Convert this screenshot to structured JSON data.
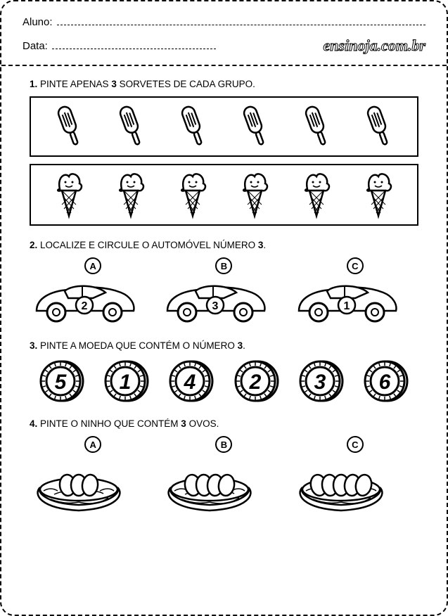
{
  "header": {
    "student_label": "Aluno:",
    "date_label": "Data:",
    "brand": "ensinoja.com.br"
  },
  "questions": {
    "q1": {
      "number": "1.",
      "text_a": "PINTE APENAS ",
      "bold": "3",
      "text_b": " SORVETES DE CADA GRUPO.",
      "popsicle_count": 6,
      "cone_count": 6
    },
    "q2": {
      "number": "2.",
      "text_a": "LOCALIZE E CIRCULE O AUTOMÓVEL NÚMERO ",
      "bold": "3",
      "text_b": ".",
      "cars": [
        {
          "letter": "A",
          "num": "2"
        },
        {
          "letter": "B",
          "num": "3"
        },
        {
          "letter": "C",
          "num": "1"
        }
      ]
    },
    "q3": {
      "number": "3.",
      "text_a": "PINTE A MOEDA QUE CONTÉM O NÚMERO ",
      "bold": "3",
      "text_b": ".",
      "coins": [
        "5",
        "1",
        "4",
        "2",
        "3",
        "6"
      ]
    },
    "q4": {
      "number": "4.",
      "text_a": "PINTE O NINHO QUE CONTÉM ",
      "bold": "3",
      "text_b": " OVOS.",
      "nests": [
        {
          "letter": "A",
          "eggs": 3
        },
        {
          "letter": "B",
          "eggs": 4
        },
        {
          "letter": "C",
          "eggs": 5
        }
      ]
    }
  },
  "style": {
    "stroke": "#000000",
    "fill": "#ffffff"
  }
}
